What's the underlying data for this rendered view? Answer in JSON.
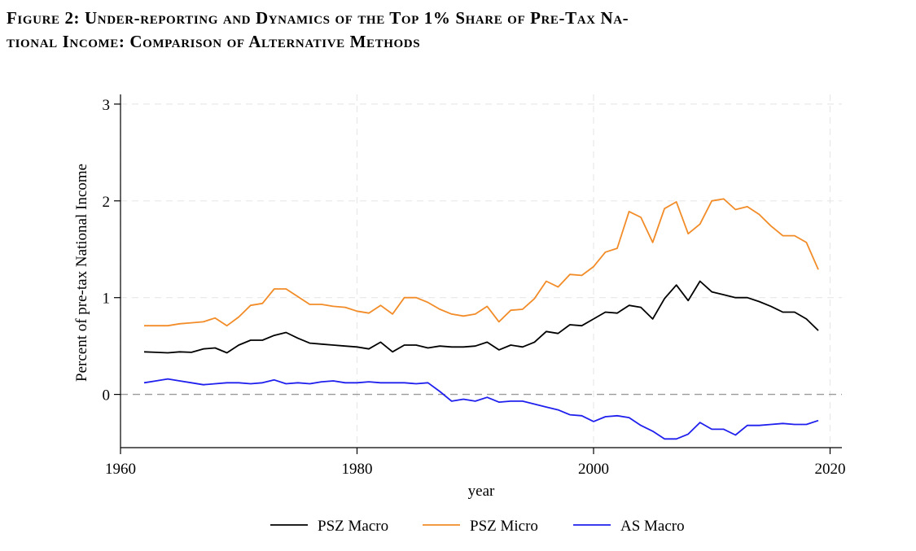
{
  "figure": {
    "caption_line1": "Figure 2: Under-reporting and Dynamics of the Top 1% Share of Pre-Tax Na-",
    "caption_line2": "tional Income: Comparison of Alternative Methods"
  },
  "chart_data": {
    "type": "line",
    "title": "",
    "xlabel": "year",
    "ylabel": "Percent of pre-tax National Income",
    "xlim": [
      1960,
      2021
    ],
    "ylim": [
      -0.55,
      3.1
    ],
    "xticks": [
      1960,
      1980,
      2000,
      2020
    ],
    "yticks": [
      0,
      1,
      2,
      3
    ],
    "grid": true,
    "legend_position": "bottom",
    "reference_line": 0,
    "colors": {
      "PSZ Macro": "#000000",
      "PSZ Micro": "#F28C28",
      "AS Macro": "#1F1FEE",
      "grid": "#e8e8e8",
      "refline": "#9a9a9a"
    },
    "x": [
      1962,
      1963,
      1964,
      1965,
      1966,
      1967,
      1968,
      1969,
      1970,
      1971,
      1972,
      1973,
      1974,
      1975,
      1976,
      1977,
      1978,
      1979,
      1980,
      1981,
      1982,
      1983,
      1984,
      1985,
      1986,
      1987,
      1988,
      1989,
      1990,
      1991,
      1992,
      1993,
      1994,
      1995,
      1996,
      1997,
      1998,
      1999,
      2000,
      2001,
      2002,
      2003,
      2004,
      2005,
      2006,
      2007,
      2008,
      2009,
      2010,
      2011,
      2012,
      2013,
      2014,
      2015,
      2016,
      2017,
      2018,
      2019
    ],
    "series": [
      {
        "name": "PSZ Macro",
        "values": [
          0.44,
          0.435,
          0.43,
          0.44,
          0.435,
          0.47,
          0.48,
          0.43,
          0.51,
          0.56,
          0.56,
          0.61,
          0.64,
          0.58,
          0.53,
          0.52,
          0.51,
          0.5,
          0.49,
          0.47,
          0.54,
          0.44,
          0.51,
          0.51,
          0.48,
          0.5,
          0.49,
          0.49,
          0.5,
          0.54,
          0.46,
          0.51,
          0.49,
          0.54,
          0.65,
          0.63,
          0.72,
          0.71,
          0.78,
          0.85,
          0.84,
          0.92,
          0.9,
          0.78,
          0.99,
          1.13,
          0.97,
          1.17,
          1.06,
          1.03,
          1.0,
          1.0,
          0.96,
          0.91,
          0.85,
          0.85,
          0.78,
          0.66
        ]
      },
      {
        "name": "PSZ Micro",
        "values": [
          0.71,
          0.71,
          0.71,
          0.73,
          0.74,
          0.75,
          0.79,
          0.71,
          0.8,
          0.92,
          0.94,
          1.09,
          1.09,
          1.01,
          0.93,
          0.93,
          0.91,
          0.9,
          0.86,
          0.84,
          0.92,
          0.83,
          1.0,
          1.0,
          0.95,
          0.88,
          0.83,
          0.81,
          0.83,
          0.91,
          0.75,
          0.87,
          0.88,
          0.99,
          1.17,
          1.11,
          1.24,
          1.23,
          1.32,
          1.47,
          1.51,
          1.89,
          1.83,
          1.57,
          1.92,
          1.99,
          1.66,
          1.76,
          2.0,
          2.02,
          1.91,
          1.94,
          1.86,
          1.74,
          1.64,
          1.64,
          1.57,
          1.29
        ]
      },
      {
        "name": "AS Macro",
        "values": [
          0.12,
          0.14,
          0.16,
          0.14,
          0.12,
          0.1,
          0.11,
          0.12,
          0.12,
          0.11,
          0.12,
          0.15,
          0.11,
          0.12,
          0.11,
          0.13,
          0.14,
          0.12,
          0.12,
          0.13,
          0.12,
          0.12,
          0.12,
          0.11,
          0.12,
          0.03,
          -0.07,
          -0.05,
          -0.07,
          -0.03,
          -0.08,
          -0.07,
          -0.07,
          -0.1,
          -0.13,
          -0.16,
          -0.21,
          -0.22,
          -0.28,
          -0.23,
          -0.22,
          -0.24,
          -0.32,
          -0.38,
          -0.46,
          -0.46,
          -0.41,
          -0.29,
          -0.36,
          -0.36,
          -0.42,
          -0.32,
          -0.32,
          -0.31,
          -0.3,
          -0.31,
          -0.31,
          -0.27
        ]
      }
    ]
  }
}
